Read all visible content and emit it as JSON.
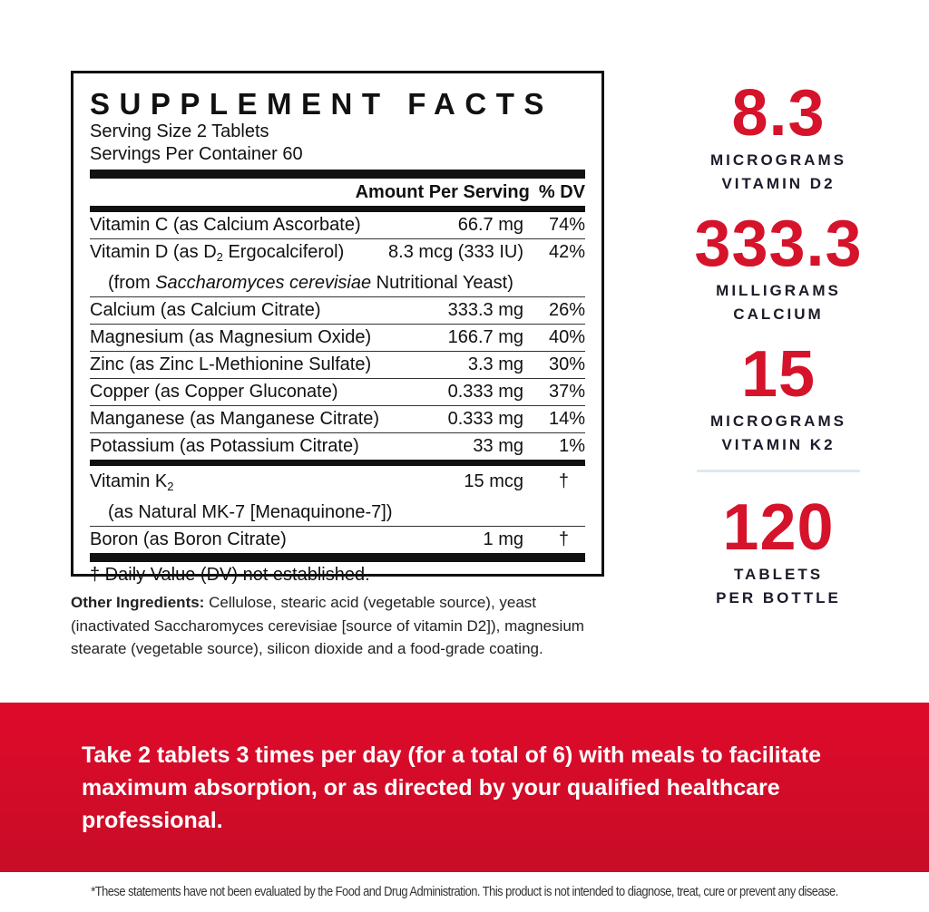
{
  "facts": {
    "title": "SUPPLEMENT FACTS",
    "serving_size": "Serving Size 2 Tablets",
    "servings_per_container": "Servings Per Container 60",
    "col_amount": "Amount Per Serving",
    "col_dv": "% DV",
    "rows": [
      {
        "name": "Vitamin C (as Calcium Ascorbate)",
        "amount": "66.7 mg",
        "dv": "74%"
      },
      {
        "name_a": "Vitamin D (as D",
        "name_sub": "2",
        "name_b": " Ergocalciferol)",
        "amount": "8.3 mcg (333 IU)",
        "dv": "42%",
        "line2_a": "(from ",
        "line2_italic": "Saccharomyces cerevisiae",
        "line2_b": " Nutritional Yeast)"
      },
      {
        "name": "Calcium (as Calcium Citrate)",
        "amount": "333.3 mg",
        "dv": "26%"
      },
      {
        "name": "Magnesium (as Magnesium Oxide)",
        "amount": "166.7 mg",
        "dv": "40%"
      },
      {
        "name": "Zinc (as Zinc L-Methionine Sulfate)",
        "amount": "3.3 mg",
        "dv": "30%"
      },
      {
        "name": "Copper (as Copper Gluconate)",
        "amount": "0.333 mg",
        "dv": "37%"
      },
      {
        "name": "Manganese (as Manganese Citrate)",
        "amount": "0.333 mg",
        "dv": "14%"
      },
      {
        "name": "Potassium (as Potassium Citrate)",
        "amount": "33 mg",
        "dv": "1%"
      },
      {
        "name": "Vitamin K",
        "name_sub": "2",
        "line2": "(as Natural MK-7 [Menaquinone-7])",
        "amount": "15 mcg",
        "dv": "†"
      },
      {
        "name": "Boron (as Boron Citrate)",
        "amount": "1 mg",
        "dv": "†"
      }
    ],
    "footnote": "† Daily Value (DV) not established."
  },
  "other_ingredients": {
    "label": "Other Ingredients:",
    "text": " Cellulose, stearic acid (vegetable source), yeast (inactivated Saccharomyces cerevisiae [source of vitamin D2]), magnesium stearate (vegetable source), silicon dioxide and a food-grade coating."
  },
  "stats": [
    {
      "value": "8.3",
      "line1": "MICROGRAMS",
      "line2": "VITAMIN D2"
    },
    {
      "value": "333.3",
      "line1": "MILLIGRAMS",
      "line2": "CALCIUM"
    },
    {
      "value": "15",
      "line1": "MICROGRAMS",
      "line2": "VITAMIN K2"
    },
    {
      "value": "120",
      "line1": "TABLETS",
      "line2": "PER BOTTLE"
    }
  ],
  "directions": "Take 2 tablets 3 times per day (for a total of 6) with meals to facilitate maximum absorption, or as directed by your qualified healthcare professional.",
  "disclaimer": "*These statements have not been evaluated by the Food and Drug Administration. This product is not intended to diagnose, treat, cure or prevent any disease.",
  "colors": {
    "accent": "#d5132b",
    "navy": "#1b1b2a"
  }
}
